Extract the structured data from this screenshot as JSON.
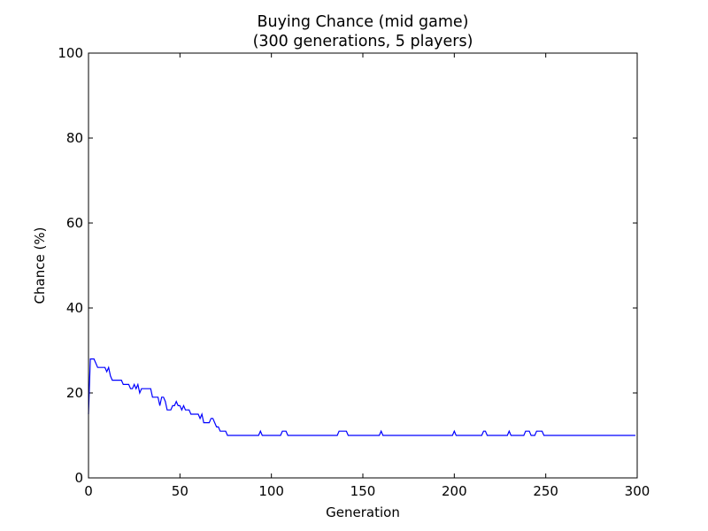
{
  "chart_data": {
    "type": "line",
    "title": "Buying Chance (mid game)",
    "subtitle": "(300 generations, 5 players)",
    "x_label": "Generation",
    "y_label": "Chance (%)",
    "color": "#0000ff",
    "xlim": [
      0,
      300
    ],
    "xticks": [
      0,
      50,
      100,
      150,
      200,
      250,
      300
    ],
    "ylim": [
      0,
      100
    ],
    "yticks": [
      0,
      20,
      40,
      60,
      80,
      100
    ],
    "grid": false,
    "x": [
      0,
      1,
      2,
      3,
      4,
      5,
      6,
      7,
      8,
      9,
      10,
      11,
      12,
      13,
      14,
      15,
      16,
      17,
      18,
      19,
      20,
      21,
      22,
      23,
      24,
      25,
      26,
      27,
      28,
      29,
      30,
      31,
      32,
      33,
      34,
      35,
      36,
      37,
      38,
      39,
      40,
      41,
      42,
      43,
      44,
      45,
      46,
      47,
      48,
      49,
      50,
      51,
      52,
      53,
      54,
      55,
      56,
      57,
      58,
      59,
      60,
      61,
      62,
      63,
      64,
      65,
      66,
      67,
      68,
      69,
      70,
      71,
      72,
      73,
      74,
      75,
      76,
      77,
      78,
      79,
      80,
      81,
      82,
      83,
      84,
      85,
      86,
      87,
      88,
      89,
      90,
      91,
      92,
      93,
      94,
      95,
      96,
      97,
      98,
      99,
      100,
      101,
      102,
      103,
      104,
      105,
      106,
      107,
      108,
      109,
      110,
      111,
      112,
      113,
      114,
      115,
      116,
      117,
      118,
      119,
      120,
      121,
      122,
      123,
      124,
      125,
      126,
      127,
      128,
      129,
      130,
      131,
      132,
      133,
      134,
      135,
      136,
      137,
      138,
      139,
      140,
      141,
      142,
      143,
      144,
      145,
      146,
      147,
      148,
      149,
      150,
      151,
      152,
      153,
      154,
      155,
      156,
      157,
      158,
      159,
      160,
      161,
      162,
      163,
      164,
      165,
      166,
      167,
      168,
      169,
      170,
      171,
      172,
      173,
      174,
      175,
      176,
      177,
      178,
      179,
      180,
      181,
      182,
      183,
      184,
      185,
      186,
      187,
      188,
      189,
      190,
      191,
      192,
      193,
      194,
      195,
      196,
      197,
      198,
      199,
      200,
      201,
      202,
      203,
      204,
      205,
      206,
      207,
      208,
      209,
      210,
      211,
      212,
      213,
      214,
      215,
      216,
      217,
      218,
      219,
      220,
      221,
      222,
      223,
      224,
      225,
      226,
      227,
      228,
      229,
      230,
      231,
      232,
      233,
      234,
      235,
      236,
      237,
      238,
      239,
      240,
      241,
      242,
      243,
      244,
      245,
      246,
      247,
      248,
      249,
      250,
      251,
      252,
      253,
      254,
      255,
      256,
      257,
      258,
      259,
      260,
      261,
      262,
      263,
      264,
      265,
      266,
      267,
      268,
      269,
      270,
      271,
      272,
      273,
      274,
      275,
      276,
      277,
      278,
      279,
      280,
      281,
      282,
      283,
      284,
      285,
      286,
      287,
      288,
      289,
      290,
      291,
      292,
      293,
      294,
      295,
      296,
      297,
      298,
      299
    ],
    "values": [
      15,
      28,
      28,
      28,
      27,
      26,
      26,
      26,
      26,
      26,
      25,
      26,
      24,
      23,
      23,
      23,
      23,
      23,
      23,
      22,
      22,
      22,
      22,
      21,
      21,
      22,
      21,
      22,
      20,
      21,
      21,
      21,
      21,
      21,
      21,
      19,
      19,
      19,
      19,
      17,
      19,
      19,
      18,
      16,
      16,
      16,
      17,
      17,
      18,
      17,
      17,
      16,
      17,
      16,
      16,
      16,
      15,
      15,
      15,
      15,
      15,
      14,
      15,
      13,
      13,
      13,
      13,
      14,
      14,
      13,
      12,
      12,
      11,
      11,
      11,
      11,
      10,
      10,
      10,
      10,
      10,
      10,
      10,
      10,
      10,
      10,
      10,
      10,
      10,
      10,
      10,
      10,
      10,
      10,
      11,
      10,
      10,
      10,
      10,
      10,
      10,
      10,
      10,
      10,
      10,
      10,
      11,
      11,
      11,
      10,
      10,
      10,
      10,
      10,
      10,
      10,
      10,
      10,
      10,
      10,
      10,
      10,
      10,
      10,
      10,
      10,
      10,
      10,
      10,
      10,
      10,
      10,
      10,
      10,
      10,
      10,
      10,
      11,
      11,
      11,
      11,
      11,
      10,
      10,
      10,
      10,
      10,
      10,
      10,
      10,
      10,
      10,
      10,
      10,
      10,
      10,
      10,
      10,
      10,
      10,
      11,
      10,
      10,
      10,
      10,
      10,
      10,
      10,
      10,
      10,
      10,
      10,
      10,
      10,
      10,
      10,
      10,
      10,
      10,
      10,
      10,
      10,
      10,
      10,
      10,
      10,
      10,
      10,
      10,
      10,
      10,
      10,
      10,
      10,
      10,
      10,
      10,
      10,
      10,
      10,
      11,
      10,
      10,
      10,
      10,
      10,
      10,
      10,
      10,
      10,
      10,
      10,
      10,
      10,
      10,
      10,
      11,
      11,
      10,
      10,
      10,
      10,
      10,
      10,
      10,
      10,
      10,
      10,
      10,
      10,
      11,
      10,
      10,
      10,
      10,
      10,
      10,
      10,
      10,
      11,
      11,
      11,
      10,
      10,
      10,
      11,
      11,
      11,
      11,
      10,
      10,
      10,
      10,
      10,
      10,
      10,
      10,
      10,
      10,
      10,
      10,
      10,
      10,
      10,
      10,
      10,
      10,
      10,
      10,
      10,
      10,
      10,
      10,
      10,
      10,
      10,
      10,
      10,
      10,
      10,
      10,
      10,
      10,
      10,
      10,
      10,
      10,
      10,
      10,
      10,
      10,
      10,
      10,
      10,
      10,
      10,
      10,
      10,
      10,
      10
    ]
  }
}
